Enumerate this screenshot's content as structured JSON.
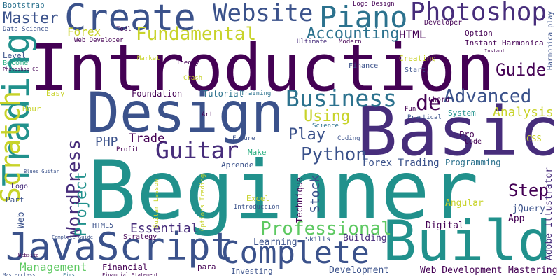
{
  "palette": {
    "dark_purple": "#440154",
    "indigo": "#472d7b",
    "blue": "#3b528b",
    "steel": "#2c728e",
    "teal": "#21918c",
    "green": "#28ae80",
    "lime": "#5ec962",
    "yellow": "#c8d32a"
  },
  "words": [
    {
      "text": "Introduction",
      "color": "#440154"
    },
    {
      "text": "Beginner",
      "color": "#21918c"
    },
    {
      "text": "Basic",
      "color": "#472d7b"
    },
    {
      "text": "Design",
      "color": "#3b528b"
    },
    {
      "text": "Build",
      "color": "#21918c"
    },
    {
      "text": "JavaScript",
      "color": "#3b528b"
    },
    {
      "text": "Create",
      "color": "#3b528b"
    },
    {
      "text": "Complete",
      "color": "#3b528b"
    },
    {
      "text": "Photoshop",
      "color": "#472d7b"
    },
    {
      "text": "Website",
      "color": "#3b528b"
    },
    {
      "text": "Piano",
      "color": "#2c728e"
    },
    {
      "text": "Trading",
      "color": "#21918c"
    },
    {
      "text": "Scratch",
      "color": "#c8d32a"
    },
    {
      "text": "Business",
      "color": "#2c728e"
    },
    {
      "text": "Guitar",
      "color": "#472d7b"
    },
    {
      "text": "Fundamental",
      "color": "#c8d32a"
    },
    {
      "text": "Professional",
      "color": "#5ec962"
    },
    {
      "text": "Advanced",
      "color": "#3b528b"
    },
    {
      "text": "WordPress",
      "color": "#472d7b"
    },
    {
      "text": "Python",
      "color": "#3b528b"
    },
    {
      "text": "Accounting",
      "color": "#2c728e"
    },
    {
      "text": "Project",
      "color": "#21918c"
    },
    {
      "text": "Guide",
      "color": "#440154"
    },
    {
      "text": "de",
      "color": "#440154"
    },
    {
      "text": "Step",
      "color": "#440154"
    },
    {
      "text": "Master",
      "color": "#3b528b"
    },
    {
      "text": "Using",
      "color": "#c8d32a"
    },
    {
      "text": "Play",
      "color": "#3b528b"
    },
    {
      "text": "Management",
      "color": "#5ec962"
    },
    {
      "text": "Essential",
      "color": "#472d7b"
    },
    {
      "text": "Analysis",
      "color": "#c8d32a"
    },
    {
      "text": "Forex Trading",
      "color": "#3b528b"
    },
    {
      "text": "Trade",
      "color": "#440154"
    },
    {
      "text": "Stock",
      "color": "#3b528b"
    },
    {
      "text": "Web Development",
      "color": "#440154"
    },
    {
      "text": "Mastering",
      "color": "#440154"
    },
    {
      "text": "Development",
      "color": "#3b528b"
    },
    {
      "text": "Financial",
      "color": "#440154"
    },
    {
      "text": "Adobe Illustrator",
      "color": "#472d7b"
    },
    {
      "text": "PHP",
      "color": "#3b528b"
    },
    {
      "text": "HTML",
      "color": "#440154"
    },
    {
      "text": "Forex",
      "color": "#c8d32a"
    },
    {
      "text": "Web",
      "color": "#3b528b"
    },
    {
      "text": "Angular",
      "color": "#c8d32a"
    },
    {
      "text": "jQuery",
      "color": "#3b528b"
    },
    {
      "text": "App",
      "color": "#440154"
    },
    {
      "text": "Digital",
      "color": "#440154"
    },
    {
      "text": "Learning",
      "color": "#3b528b"
    },
    {
      "text": "Building",
      "color": "#472d7b"
    },
    {
      "text": "Programming",
      "color": "#2c728e"
    },
    {
      "text": "Technique",
      "color": "#440154"
    },
    {
      "text": "Foundation",
      "color": "#440154"
    },
    {
      "text": "Tutorial",
      "color": "#2c728e"
    },
    {
      "text": "Bootstrap",
      "color": "#2c728e"
    },
    {
      "text": "Logo Design",
      "color": "#440154"
    },
    {
      "text": "Option",
      "color": "#440154"
    },
    {
      "text": "Instant Harmonica",
      "color": "#440154"
    },
    {
      "text": "Harmonica play",
      "color": "#3b528b"
    },
    {
      "text": "Developer",
      "color": "#440154"
    },
    {
      "text": "Chord",
      "color": "#440154"
    },
    {
      "text": "System",
      "color": "#21918c"
    },
    {
      "text": "Hour",
      "color": "#c8d32a"
    },
    {
      "text": "Easy",
      "color": "#c8d32a"
    },
    {
      "text": "Level",
      "color": "#3b528b"
    },
    {
      "text": "Become",
      "color": "#28ae80"
    },
    {
      "text": "Part",
      "color": "#3b528b"
    },
    {
      "text": "Finance",
      "color": "#3b528b"
    },
    {
      "text": "Creating",
      "color": "#c8d32a"
    },
    {
      "text": "Start",
      "color": "#3b528b"
    },
    {
      "text": "Pro",
      "color": "#440154"
    },
    {
      "text": "Code",
      "color": "#440154"
    },
    {
      "text": "CSS",
      "color": "#c8d32a"
    },
    {
      "text": "Make",
      "color": "#28ae80"
    },
    {
      "text": "Aprende",
      "color": "#3b528b"
    },
    {
      "text": "Excel",
      "color": "#c8d32a"
    },
    {
      "text": "Investing",
      "color": "#3b528b"
    },
    {
      "text": "para",
      "color": "#440154"
    },
    {
      "text": "Skills",
      "color": "#3b528b"
    },
    {
      "text": "Science",
      "color": "#2c728e"
    },
    {
      "text": "Coding",
      "color": "#3b528b"
    },
    {
      "text": "Market",
      "color": "#c8d32a"
    },
    {
      "text": "Theory",
      "color": "#440154"
    },
    {
      "text": "Crash",
      "color": "#c8d32a"
    },
    {
      "text": "Training",
      "color": "#2c728e"
    },
    {
      "text": "Strategy",
      "color": "#440154"
    },
    {
      "text": "HTML5",
      "color": "#3b528b"
    },
    {
      "text": "Logo",
      "color": "#472d7b"
    },
    {
      "text": "Art",
      "color": "#440154"
    },
    {
      "text": "Future",
      "color": "#3b528b"
    },
    {
      "text": "Profit",
      "color": "#440154"
    },
    {
      "text": "Fun",
      "color": "#440154"
    },
    {
      "text": "Practical",
      "color": "#3b528b"
    },
    {
      "text": "Ultimate",
      "color": "#472d7b"
    },
    {
      "text": "Modern",
      "color": "#440154"
    },
    {
      "text": "Web Developer",
      "color": "#440154"
    },
    {
      "text": "Data Science",
      "color": "#3b528b"
    },
    {
      "text": "Tool",
      "color": "#440154"
    },
    {
      "text": "Introducción",
      "color": "#3b528b"
    },
    {
      "text": "Guitar Lesson",
      "color": "#c8d32a"
    },
    {
      "text": "Options Trading",
      "color": "#c8d32a"
    },
    {
      "text": "Blues Guitar",
      "color": "#3b528b"
    },
    {
      "text": "Photoshop CC",
      "color": "#440154"
    },
    {
      "text": "Financial Statement",
      "color": "#440154"
    },
    {
      "text": "Masterclass",
      "color": "#3b528b"
    },
    {
      "text": "First",
      "color": "#2c728e"
    },
    {
      "text": "Complete Guide",
      "color": "#3b528b"
    },
    {
      "text": "Website",
      "color": "#440154"
    },
    {
      "text": "Instant",
      "color": "#440154"
    }
  ]
}
